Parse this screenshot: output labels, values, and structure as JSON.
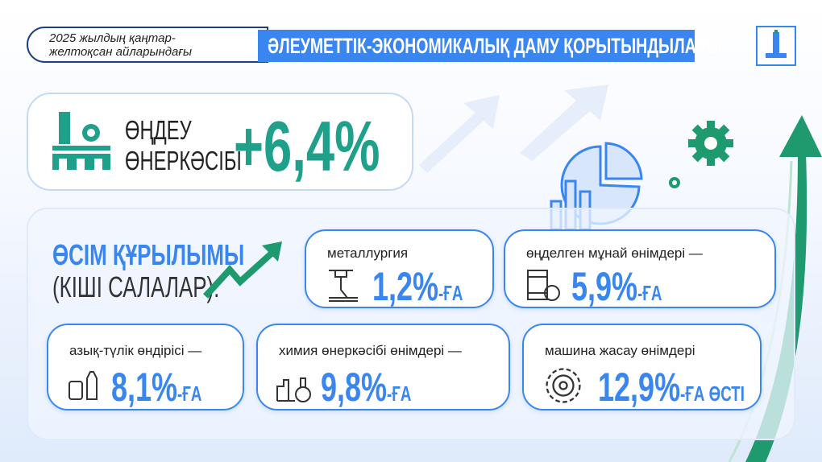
{
  "header": {
    "period_line1": "2025 жылдың қаңтар-",
    "period_line2": "желтоқсан айларындағы",
    "title": "ӘЛЕУМЕТТІК-ЭКОНОМИКАЛЫҚ ДАМУ ҚОРЫТЫНДЫЛАРЫ"
  },
  "summary": {
    "line1": "ӨҢДЕУ",
    "line2": "ӨНЕРКӘСІБІ",
    "value": "+6,4%"
  },
  "structure": {
    "title": "ӨСІМ ҚҰРЫЛЫМЫ",
    "subtitle": "(КІШІ САЛАЛАР):"
  },
  "sectors": [
    {
      "label": "металлургия",
      "value": "1,2%",
      "suffix": "-ҒА",
      "icon": "metallurgy-icon"
    },
    {
      "label": "өңделген мұнай өнімдері —",
      "value": "5,9%",
      "suffix": "-ҒА",
      "icon": "oil-barrel-icon"
    },
    {
      "label": "азық-түлік өндірісі —",
      "value": "8,1%",
      "suffix": "-ҒА",
      "icon": "food-icon"
    },
    {
      "label": "химия өнеркәсібі өнімдері —",
      "value": "9,8%",
      "suffix": "-ҒА",
      "icon": "chemistry-icon"
    },
    {
      "label": "машина жасау өнімдері",
      "value": "12,9%",
      "suffix": "-ҒА ӨСТІ",
      "icon": "gear-cycle-icon"
    }
  ],
  "colors": {
    "accent": "#3a86f0",
    "teal": "#1fa08a",
    "green": "#1e9a6e",
    "navy": "#1d3f86"
  }
}
